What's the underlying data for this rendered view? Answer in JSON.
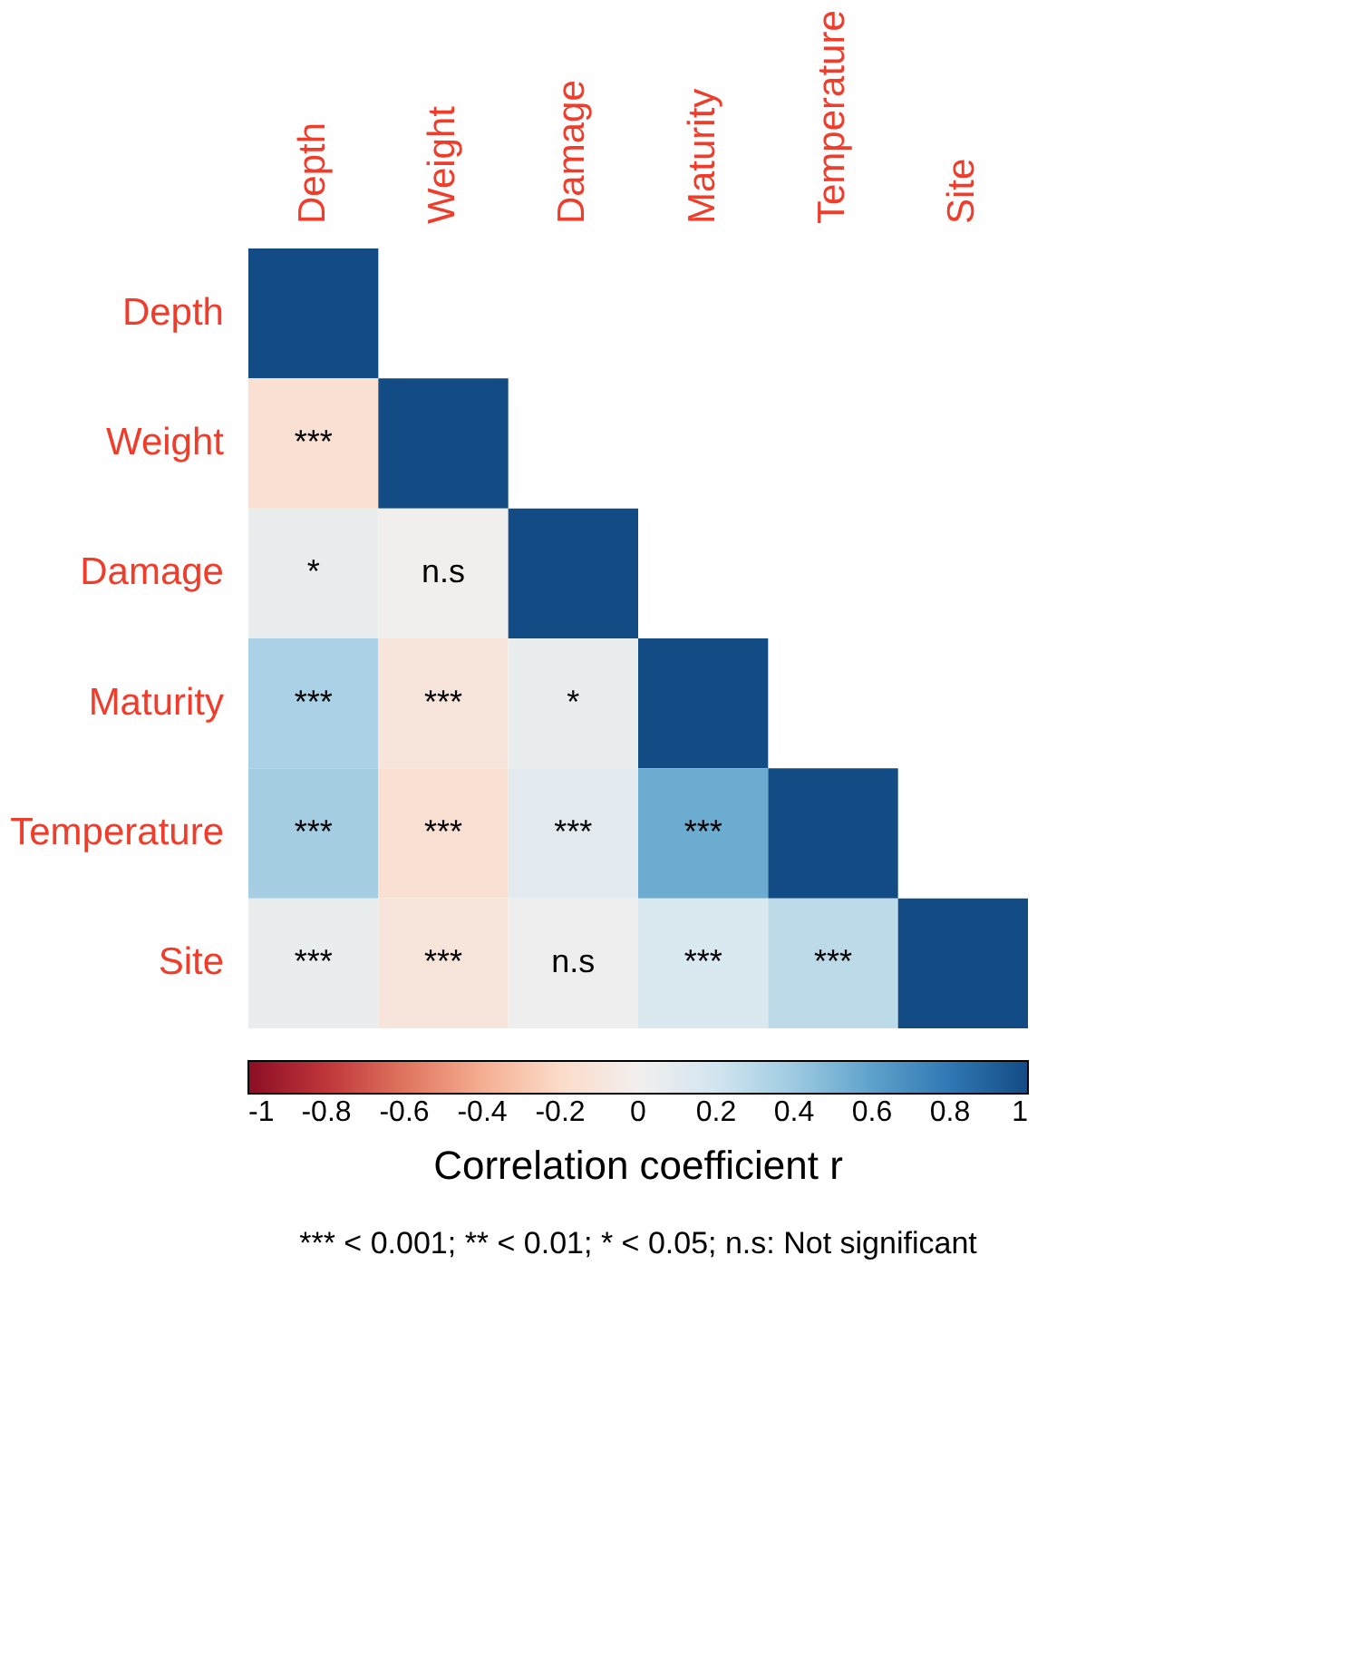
{
  "chart_data": {
    "type": "heatmap",
    "xlabel": null,
    "clabel": "Correlation coefficient r",
    "categories": [
      "Depth",
      "Weight",
      "Damage",
      "Maturity",
      "Temperature",
      "Site"
    ],
    "y_categories": [
      "Depth",
      "Weight",
      "Damage",
      "Maturity",
      "Temperature",
      "Site"
    ],
    "cells": [
      [
        1,
        null,
        null,
        null,
        null,
        null
      ],
      [
        -0.15,
        1,
        null,
        null,
        null,
        null
      ],
      [
        0.05,
        0.01,
        1,
        null,
        null,
        null
      ],
      [
        0.35,
        -0.1,
        0.05,
        1,
        null,
        null
      ],
      [
        0.37,
        -0.15,
        0.1,
        0.55,
        1,
        null
      ],
      [
        0.05,
        -0.1,
        0.02,
        0.15,
        0.28,
        1
      ]
    ],
    "cell_labels": [
      [
        null,
        null,
        null,
        null,
        null,
        null
      ],
      [
        "***",
        null,
        null,
        null,
        null,
        null
      ],
      [
        "*",
        "n.s",
        null,
        null,
        null,
        null
      ],
      [
        "***",
        "***",
        "*",
        null,
        null,
        null
      ],
      [
        "***",
        "***",
        "***",
        "***",
        null,
        null
      ],
      [
        "***",
        "***",
        "n.s",
        "***",
        "***",
        null
      ]
    ],
    "clim": [
      -1,
      1
    ],
    "cticks": [
      -1,
      -0.8,
      -0.6,
      -0.4,
      -0.2,
      0,
      0.2,
      0.4,
      0.6,
      0.8,
      1
    ],
    "grid": false,
    "annotations": [
      "*** < 0.001; ** < 0.01; * < 0.05; n.s: Not significant"
    ]
  }
}
